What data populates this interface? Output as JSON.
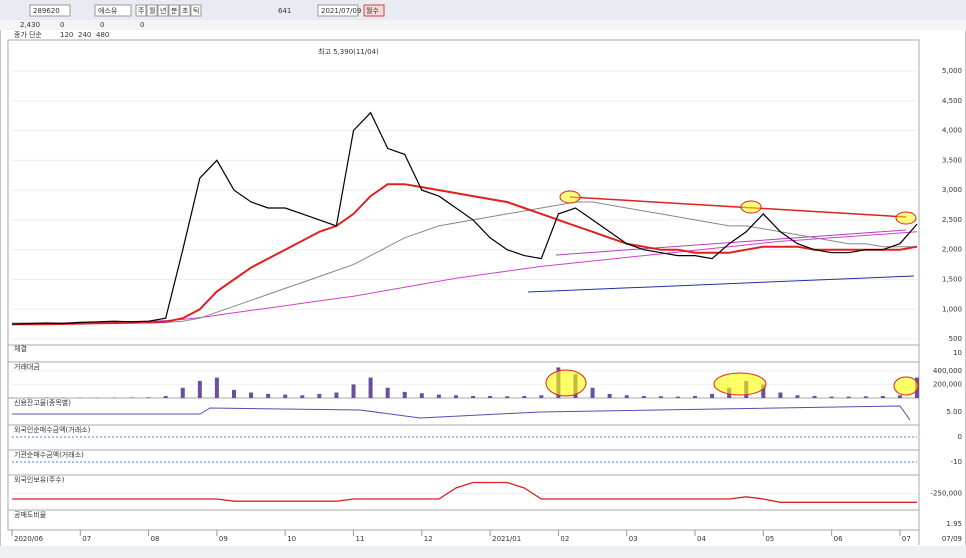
{
  "toolbar": {
    "code": "289620",
    "name": "에스유",
    "date": "2021/07/09",
    "count": "641",
    "buttons": [
      "주",
      "월",
      "년",
      "분",
      "초",
      "틱"
    ],
    "action": "월수"
  },
  "info": [
    "2,430",
    "0",
    "0",
    "0"
  ],
  "chart_data": {
    "type": "line",
    "title": "종가 단순",
    "annotation": "최고 5,390(11/04)",
    "series": [
      {
        "color": "#000000",
        "values": [
          750,
          760,
          770,
          760,
          780,
          790,
          800,
          790,
          800,
          850,
          2000,
          3200,
          3500,
          3000,
          2800,
          2700,
          2700,
          2600,
          2500,
          2400,
          4000,
          4300,
          3700,
          3600,
          3000,
          2900,
          2700,
          2500,
          2200,
          2000,
          1900,
          1850,
          2600,
          2700,
          2500,
          2300,
          2100,
          2000,
          1950,
          1900,
          1900,
          1850,
          2100,
          2300,
          2600,
          2300,
          2100,
          2000,
          1950,
          1950,
          2000,
          2000,
          2100,
          2430
        ]
      },
      {
        "name": "120",
        "color": "#e02020",
        "values": [
          750,
          750,
          750,
          755,
          760,
          765,
          770,
          775,
          780,
          790,
          850,
          1000,
          1300,
          1500,
          1700,
          1850,
          2000,
          2150,
          2300,
          2400,
          2600,
          2900,
          3100,
          3100,
          3050,
          3000,
          2950,
          2900,
          2850,
          2800,
          2700,
          2600,
          2500,
          2400,
          2300,
          2200,
          2100,
          2050,
          2000,
          2000,
          1950,
          1950,
          1950,
          2000,
          2050,
          2050,
          2050,
          2000,
          2000,
          2000,
          2000,
          2000,
          2000,
          2050
        ]
      },
      {
        "name": "240",
        "color": "#888888",
        "values": [
          770,
          770,
          770,
          770,
          770,
          770,
          770,
          770,
          770,
          780,
          800,
          850,
          950,
          1050,
          1150,
          1250,
          1350,
          1450,
          1550,
          1650,
          1750,
          1900,
          2050,
          2200,
          2300,
          2400,
          2450,
          2500,
          2550,
          2600,
          2650,
          2700,
          2750,
          2800,
          2800,
          2750,
          2700,
          2650,
          2600,
          2550,
          2500,
          2450,
          2400,
          2400,
          2350,
          2300,
          2250,
          2200,
          2150,
          2100,
          2100,
          2050,
          2050,
          2050
        ]
      },
      {
        "name": "480",
        "color": "#d040d0",
        "values": [
          760,
          765,
          770,
          775,
          780,
          785,
          790,
          795,
          800,
          810,
          830,
          860,
          900,
          940,
          980,
          1020,
          1060,
          1100,
          1140,
          1180,
          1220,
          1270,
          1320,
          1370,
          1420,
          1470,
          1520,
          1560,
          1600,
          1640,
          1680,
          1720,
          1750,
          1780,
          1810,
          1840,
          1870,
          1900,
          1930,
          1960,
          1990,
          2020,
          2050,
          2080,
          2110,
          2140,
          2160,
          2180,
          2200,
          2220,
          2240,
          2260,
          2280,
          2300
        ]
      }
    ],
    "ylim": [
      400,
      5520
    ],
    "yticks": [
      {
        "value": 500,
        "label": "500"
      },
      {
        "value": 1000,
        "label": "1,000"
      },
      {
        "value": 1500,
        "label": "1,500"
      },
      {
        "value": 2000,
        "label": "2,000"
      },
      {
        "value": 2500,
        "label": "2,500"
      },
      {
        "value": 3000,
        "label": "3,000"
      },
      {
        "value": 3500,
        "label": "3,500"
      },
      {
        "value": 4000,
        "label": "4,000"
      },
      {
        "value": 4500,
        "label": "4,500"
      },
      {
        "value": 5000,
        "label": "5,000"
      }
    ],
    "xlim": [
      0,
      53
    ],
    "xticks": [
      {
        "value": 0,
        "label": "2020/06"
      },
      {
        "value": 4,
        "label": "07"
      },
      {
        "value": 8,
        "label": "08"
      },
      {
        "value": 12,
        "label": "09"
      },
      {
        "value": 16,
        "label": "10"
      },
      {
        "value": 20,
        "label": "11"
      },
      {
        "value": 24,
        "label": "12"
      },
      {
        "value": 28,
        "label": "2021/01"
      },
      {
        "value": 32,
        "label": "02"
      },
      {
        "value": 36,
        "label": "03"
      },
      {
        "value": 40,
        "label": "04"
      },
      {
        "value": 44,
        "label": "05"
      },
      {
        "value": 48,
        "label": "06"
      },
      {
        "value": 52,
        "label": "07"
      }
    ],
    "last_date": "07/09",
    "volume": {
      "label": "거래대금",
      "color": "#6a4fa0",
      "ylim": [
        0,
        500000
      ],
      "yticks": [
        {
          "value": 200000,
          "label": "200,000"
        },
        {
          "value": 400000,
          "label": "400,000"
        }
      ],
      "values": [
        5000,
        5000,
        5000,
        5000,
        5000,
        5000,
        5000,
        8000,
        10000,
        30000,
        150000,
        250000,
        300000,
        120000,
        80000,
        60000,
        50000,
        40000,
        60000,
        80000,
        200000,
        300000,
        150000,
        90000,
        70000,
        50000,
        40000,
        30000,
        30000,
        25000,
        30000,
        40000,
        450000,
        350000,
        150000,
        60000,
        40000,
        30000,
        25000,
        20000,
        30000,
        60000,
        150000,
        250000,
        200000,
        80000,
        40000,
        30000,
        20000,
        20000,
        25000,
        30000,
        40000,
        300000
      ]
    },
    "holdings": {
      "label": "외국인보유(주수)",
      "color": "#e02020",
      "ylim": [
        -400000,
        -100000
      ],
      "yticks": [
        {
          "value": -250000,
          "label": "-250,000"
        }
      ],
      "values": [
        -300000,
        -300000,
        -300000,
        -300000,
        -300000,
        -300000,
        -300000,
        -300000,
        -300000,
        -300000,
        -300000,
        -300000,
        -300000,
        -320000,
        -320000,
        -320000,
        -320000,
        -320000,
        -320000,
        -320000,
        -300000,
        -300000,
        -300000,
        -300000,
        -300000,
        -300000,
        -200000,
        -150000,
        -150000,
        -150000,
        -200000,
        -300000,
        -300000,
        -300000,
        -300000,
        -300000,
        -300000,
        -300000,
        -300000,
        -300000,
        -300000,
        -300000,
        -300000,
        -280000,
        -300000,
        -330000,
        -330000,
        -330000,
        -330000,
        -330000,
        -330000,
        -330000,
        -330000,
        -330000
      ]
    },
    "panels": [
      "체결",
      "신용잔고율(종목별)",
      "외국인순매수금액(거래소)",
      "기관순매수금액(거래소)",
      "공매도비율"
    ],
    "panel_ticks": [
      "10",
      "5.00",
      "0",
      "-10",
      "1.95"
    ]
  }
}
